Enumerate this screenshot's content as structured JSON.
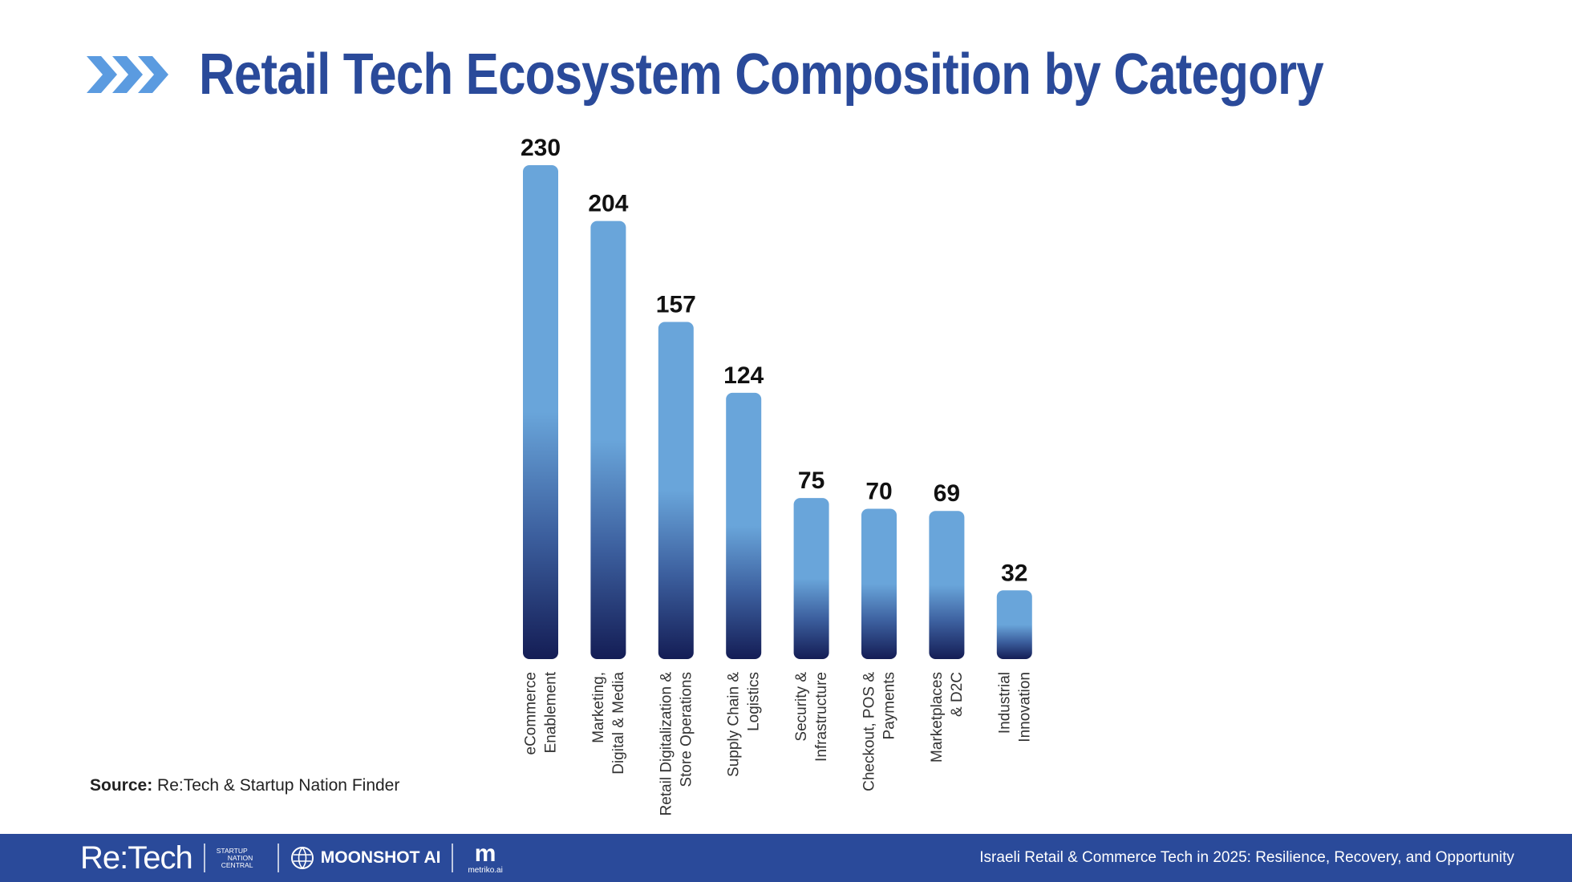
{
  "header": {
    "title": "Retail Tech Ecosystem Composition by Category",
    "icon": "triple-chevron-icon"
  },
  "chart_data": {
    "type": "bar",
    "title": "",
    "xlabel": "",
    "ylabel": "",
    "categories": [
      "eCommerce Enablement",
      "Marketing, Digital & Media",
      "Retail Digitalization & Store Operations",
      "Supply Chain & Logistics",
      "Security & Infrastructure",
      "Checkout, POS & Payments",
      "Marketplaces & D2C",
      "Industrial Innovation"
    ],
    "category_lines": [
      [
        "eCommerce",
        "Enablement"
      ],
      [
        "Marketing,",
        "Digital & Media"
      ],
      [
        "Retail Digitalization &",
        "Store Operations"
      ],
      [
        "Supply Chain &",
        "Logistics"
      ],
      [
        "Security &",
        "Infrastructure"
      ],
      [
        "Checkout, POS &",
        "Payments"
      ],
      [
        "Marketplaces",
        "& D2C"
      ],
      [
        "Industrial",
        "Innovation"
      ]
    ],
    "values": [
      230,
      204,
      157,
      124,
      75,
      70,
      69,
      32
    ],
    "ylim": [
      0,
      230
    ],
    "grid": false,
    "legend": "none",
    "colors": {
      "bar_top": "#69a5da",
      "bar_bottom": "#141d55"
    }
  },
  "source": {
    "label": "Source:",
    "text": "Re:Tech & Startup Nation Finder"
  },
  "footer": {
    "logo_retech": "Re:Tech",
    "logo_snc": [
      "STARTUP",
      "NATION",
      "CENTRAL"
    ],
    "logo_moonshot": "MOONSHOT AI",
    "logo_metriko_mark": "m",
    "logo_metriko": "metriko.ai",
    "report_title": "Israeli Retail & Commerce Tech in 2025: Resilience, Recovery, and Opportunity",
    "color": "#2a4a9a"
  }
}
